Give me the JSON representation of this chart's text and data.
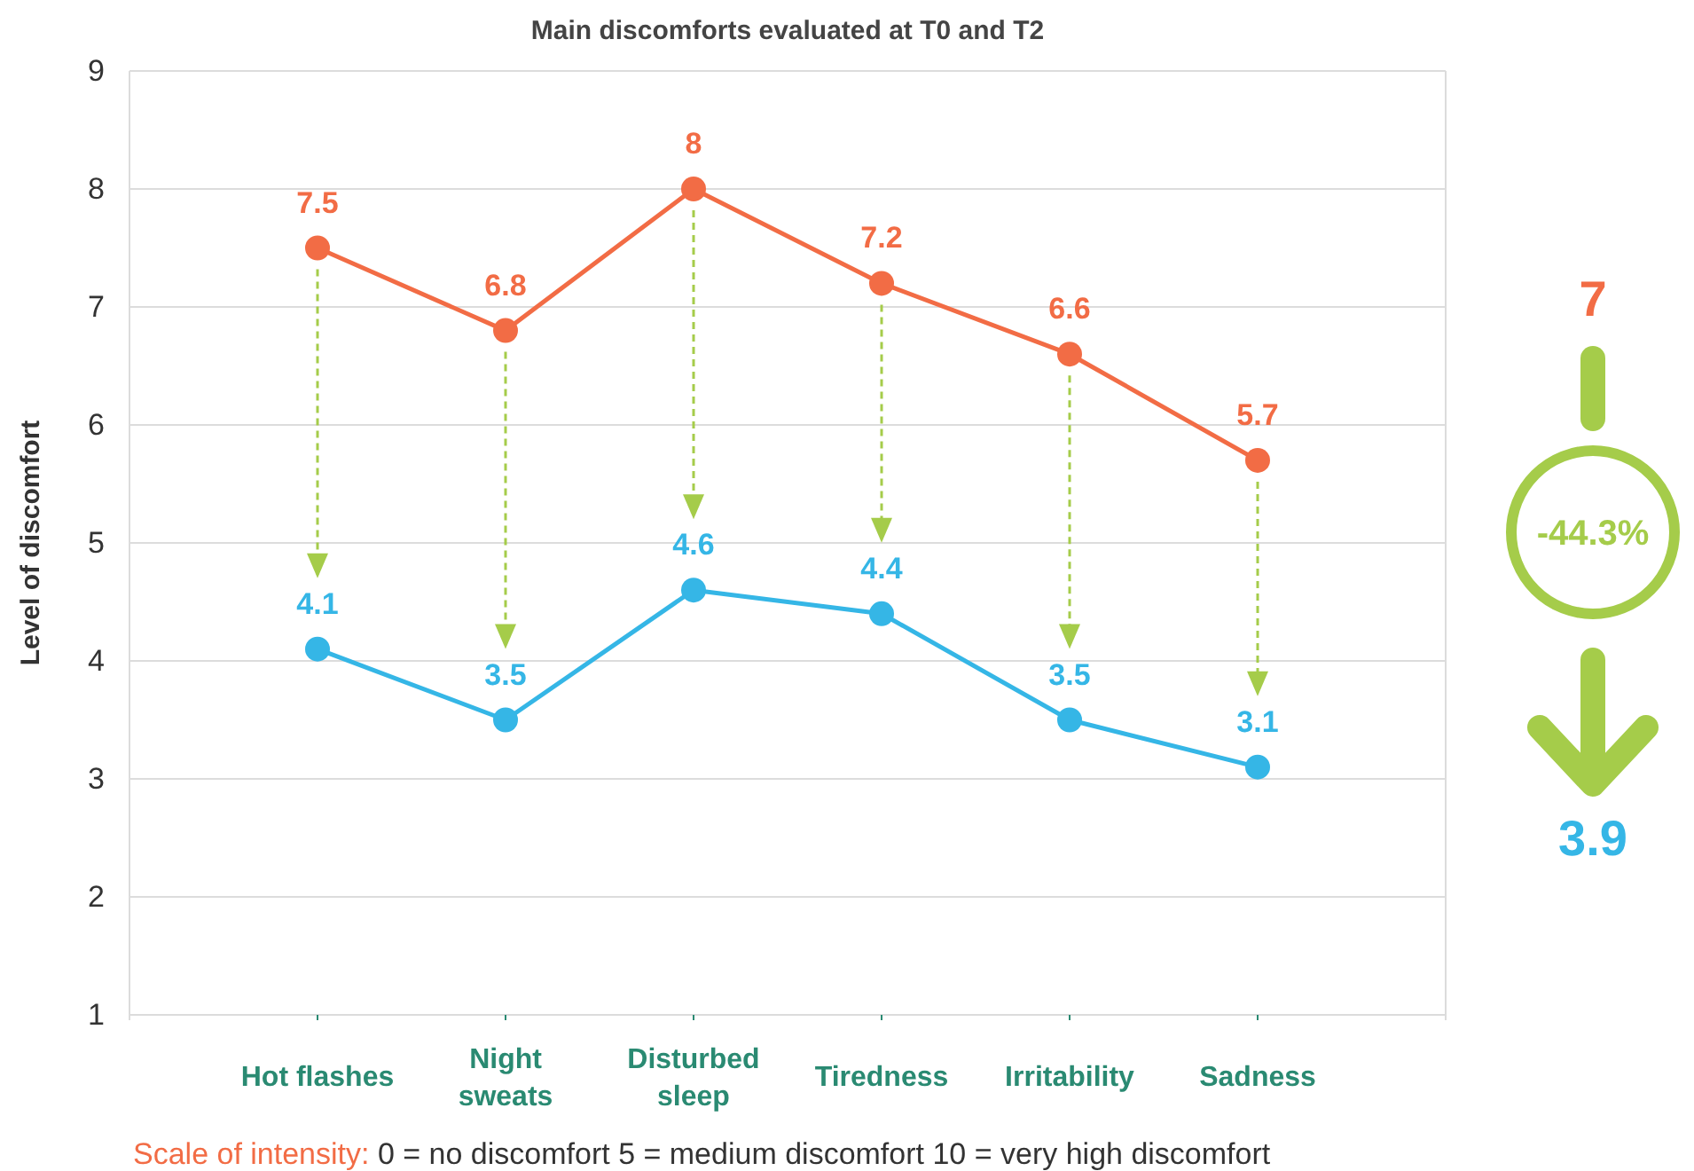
{
  "chart_data": {
    "type": "line",
    "title": "Main discomforts evaluated at T0 and T2",
    "ylabel": "Level of discomfort",
    "categories": [
      "Hot flashes",
      "Night sweats",
      "Disturbed sleep",
      "Tiredness",
      "Irritability",
      "Sadness"
    ],
    "series": [
      {
        "color": "#f26c45",
        "values": [
          7.5,
          6.8,
          8,
          7.2,
          6.6,
          5.7
        ]
      },
      {
        "color": "#35b6e6",
        "values": [
          4.1,
          3.5,
          4.6,
          4.4,
          3.5,
          3.1
        ]
      }
    ],
    "ylim": [
      1,
      9
    ],
    "yticks": [
      1,
      2,
      3,
      4,
      5,
      6,
      7,
      8,
      9
    ],
    "grid": "y",
    "marker": "circle",
    "line_style": "solid",
    "data_labels": true,
    "annotations": [
      "7",
      "-44.3%",
      "3.9",
      "Scale of intensity: 0 = no discomfort 5 = medium discomfort 10 = very high discomfort"
    ]
  }
}
